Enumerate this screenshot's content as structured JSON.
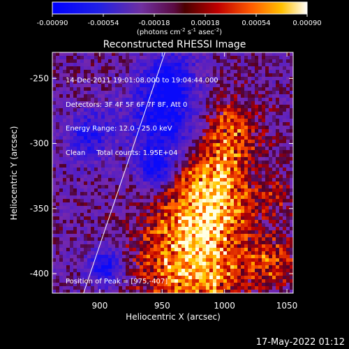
{
  "chart_data": {
    "type": "heatmap",
    "title": "Reconstructed RHESSI Image",
    "xlabel": "Heliocentric X (arcsec)",
    "ylabel": "Heliocentric Y (arcsec)",
    "xlim": [
      862,
      1055
    ],
    "ylim": [
      -415,
      -230
    ],
    "xticks": [
      900,
      950,
      1000,
      1050
    ],
    "yticks": [
      -250,
      -300,
      -350,
      -400
    ],
    "colorbar": {
      "ticks": [
        "-0.00090",
        "-0.00054",
        "-0.00018",
        "0.00018",
        "0.00054",
        "0.00090"
      ],
      "range": [
        -0.0009,
        0.0009
      ],
      "unit_label": "(photons cm",
      "unit_sup1": "-2",
      "unit_mid": " s",
      "unit_sup2": "-1",
      "unit_mid2": " asec",
      "unit_sup3": "-2",
      "unit_end": ")"
    },
    "limb_line": {
      "x": [
        887,
        953
      ],
      "y": [
        -415,
        -228
      ]
    },
    "peak_position": [
      975,
      -407
    ],
    "bright_regions": [
      {
        "x": 975,
        "y": -390,
        "r": 30,
        "level": 1.0
      },
      {
        "x": 990,
        "y": -335,
        "r": 22,
        "level": 0.85
      },
      {
        "x": 1005,
        "y": -290,
        "r": 18,
        "level": 0.55
      },
      {
        "x": 905,
        "y": -300,
        "r": 12,
        "level": 0.35
      },
      {
        "x": 1040,
        "y": -390,
        "r": 14,
        "level": 0.5
      },
      {
        "x": 1040,
        "y": -340,
        "r": 10,
        "level": 0.35
      }
    ],
    "dark_regions": [
      {
        "x": 895,
        "y": -295,
        "r": 14
      },
      {
        "x": 950,
        "y": -285,
        "r": 20
      },
      {
        "x": 945,
        "y": -320,
        "r": 10
      },
      {
        "x": 905,
        "y": -395,
        "r": 10
      },
      {
        "x": 955,
        "y": -250,
        "r": 15
      }
    ]
  },
  "info": {
    "line1": "14-Dec-2011 19:01:08.000 to 19:04:44.000",
    "line2": "Detectors: 3F 4F 5F 6F 7F 8F, Att 0",
    "line3": "Energy Range: 12.0 - 25.0 keV",
    "line4": "Clean     Total counts: 1.95E+04"
  },
  "peak_label": "Position of Peak = [975,-407]",
  "datestamp": "17-May-2022 01:12"
}
